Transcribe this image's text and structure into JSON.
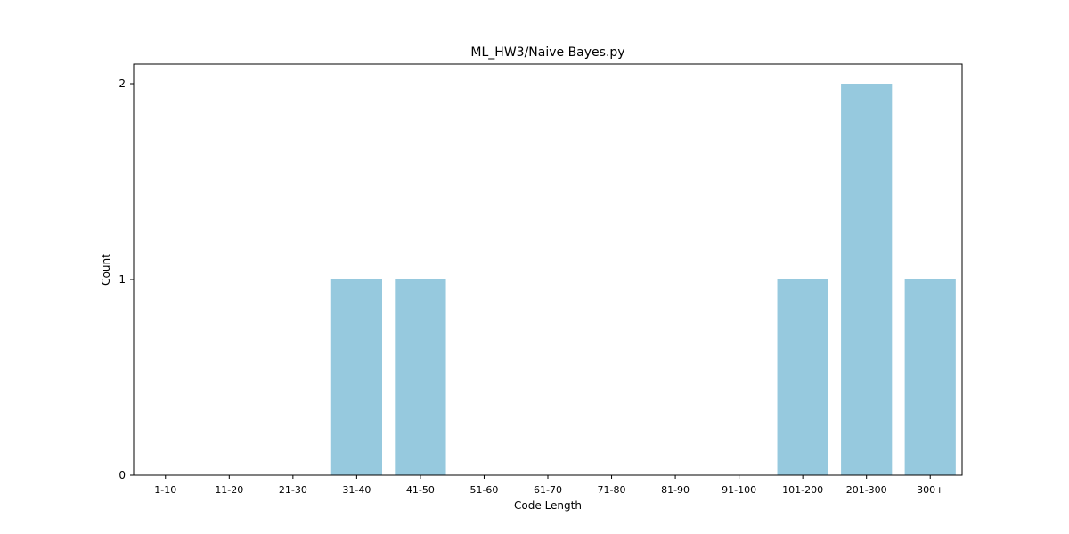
{
  "chart_data": {
    "type": "bar",
    "title": "ML_HW3/Naive Bayes.py",
    "xlabel": "Code Length",
    "ylabel": "Count",
    "categories": [
      "1-10",
      "11-20",
      "21-30",
      "31-40",
      "41-50",
      "51-60",
      "61-70",
      "71-80",
      "81-90",
      "91-100",
      "101-200",
      "201-300",
      "300+"
    ],
    "values": [
      0,
      0,
      0,
      1,
      1,
      0,
      0,
      0,
      0,
      0,
      1,
      2,
      1
    ],
    "ylim": [
      0,
      2.1
    ],
    "yticks": [
      0,
      1,
      2
    ],
    "bar_color": "#96c9de",
    "grid": false
  }
}
